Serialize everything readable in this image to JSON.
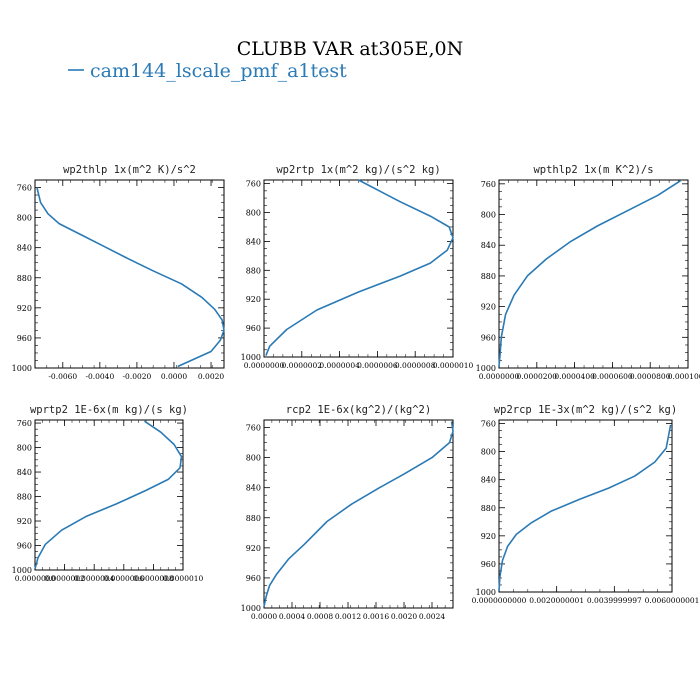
{
  "figure": {
    "title": "CLUBB VAR at305E,0N",
    "legend": "cam144_lscale_pmf_a1test",
    "series_color": "#2a7ab5"
  },
  "chart_data": [
    {
      "type": "line",
      "title": "wp2thlp   1x(m^2 K)/s^2",
      "xlim": [
        -0.0075,
        0.0027
      ],
      "ylim": [
        1000,
        750
      ],
      "y_ticks": [
        "760",
        "800",
        "840",
        "880",
        "920",
        "960",
        "1000"
      ],
      "x_ticks": [
        "-0.0060",
        "-0.0040",
        "-0.0020",
        "0.0000",
        "0.0020"
      ],
      "x_tick_values": [
        -0.006,
        -0.004,
        -0.002,
        0.0,
        0.002
      ],
      "series": [
        {
          "x": [
            -0.0074,
            -0.0072,
            -0.0068,
            -0.0062,
            -0.005,
            -0.0038,
            -0.0026,
            -0.0012,
            0.0004,
            0.0015,
            0.0022,
            0.0026,
            0.0027,
            0.0025,
            0.002,
            0.0002
          ],
          "y": [
            760,
            780,
            795,
            808,
            823,
            838,
            853,
            870,
            888,
            906,
            922,
            936,
            950,
            963,
            978,
            998
          ]
        }
      ]
    },
    {
      "type": "line",
      "title": "wp2rtp   1x(m^2 kg)/(s^2 kg)",
      "xlim": [
        0.0,
        1e-05
      ],
      "ylim": [
        1000,
        755
      ],
      "y_ticks": [
        "760",
        "800",
        "840",
        "880",
        "920",
        "960",
        "1000"
      ],
      "x_ticks": [
        "0.0000000",
        "0.0000002",
        "0.0000004",
        "0.0000006",
        "0.0000008",
        "0.0000010"
      ],
      "series": [
        {
          "x": [
            5e-06,
            7.2e-06,
            8.8e-06,
            9.8e-06,
            1e-05,
            9.7e-06,
            8.8e-06,
            7.2e-06,
            5e-06,
            2.8e-06,
            1.2e-06,
            3e-07,
            1e-07
          ],
          "y": [
            755,
            785,
            805,
            820,
            835,
            852,
            870,
            888,
            910,
            935,
            962,
            985,
            998
          ]
        }
      ]
    },
    {
      "type": "line",
      "title": "wpthlp2   1x(m K^2)/s",
      "xlim": [
        0.0,
        0.0001
      ],
      "ylim": [
        1000,
        755
      ],
      "y_ticks": [
        "760",
        "800",
        "840",
        "880",
        "920",
        "960",
        "1000"
      ],
      "x_ticks": [
        "0.0000000",
        "0.0000200",
        "0.0000400",
        "0.0000600",
        "0.0000800",
        "0.0001000"
      ],
      "series": [
        {
          "x": [
            0.0,
            5e-07,
            1.2e-06,
            3.5e-06,
            8e-06,
            1.5e-05,
            2.5e-05,
            3.8e-05,
            5.2e-05,
            6.8e-05,
            8.4e-05,
            9.6e-05
          ],
          "y": [
            998,
            985,
            960,
            930,
            905,
            880,
            858,
            835,
            815,
            795,
            775,
            756
          ]
        }
      ]
    },
    {
      "type": "line",
      "title": "wprtp2   1E-6x(m kg)/(s kg)",
      "xlim": [
        0.0,
        1e-06
      ],
      "ylim": [
        1000,
        755
      ],
      "y_ticks": [
        "760",
        "800",
        "840",
        "880",
        "920",
        "960",
        "1000"
      ],
      "x_ticks": [
        "0.0000000",
        "0.0000002",
        "0.0000004",
        "0.0000006",
        "0.0000008",
        "0.0000010"
      ],
      "series": [
        {
          "x": [
            7.4e-07,
            8.5e-07,
            9.4e-07,
            9.9e-07,
            9.8e-07,
            9e-07,
            7.5e-07,
            5.5e-07,
            3.5e-07,
            1.8e-07,
            7e-08,
            2e-08,
            0.0
          ],
          "y": [
            757,
            775,
            795,
            815,
            833,
            852,
            870,
            892,
            912,
            935,
            958,
            980,
            998
          ]
        }
      ]
    },
    {
      "type": "line",
      "title": "rcp2   1E-6x(kg^2)/(kg^2)",
      "xlim": [
        0.0,
        0.0027
      ],
      "ylim": [
        1000,
        750
      ],
      "y_ticks": [
        "760",
        "800",
        "840",
        "880",
        "920",
        "960",
        "1000"
      ],
      "x_ticks": [
        "0.0000",
        "0.0004",
        "0.0008",
        "0.0012",
        "0.0016",
        "0.0020",
        "0.0024"
      ],
      "x_tick_values": [
        0.0,
        0.0004,
        0.0008,
        0.0012,
        0.0016,
        0.002,
        0.0024
      ],
      "series": [
        {
          "x": [
            0.0,
            3e-05,
            8e-05,
            0.00018,
            0.00035,
            0.00058,
            0.0009,
            0.00125,
            0.00165,
            0.002,
            0.0024,
            0.00265,
            0.0027,
            0.00268
          ],
          "y": [
            998,
            985,
            970,
            955,
            935,
            915,
            885,
            862,
            840,
            822,
            800,
            780,
            765,
            752
          ]
        }
      ]
    },
    {
      "type": "line",
      "title": "wp2rcp   1E-3x(m^2 kg)/(s^2 kg)",
      "xlim": [
        0.0,
        0.0060000001
      ],
      "ylim": [
        1000,
        755
      ],
      "y_ticks": [
        "760",
        "800",
        "840",
        "880",
        "920",
        "960",
        "1000"
      ],
      "x_ticks": [
        "0.0000000000",
        "0.0020000001",
        "0.0039999997",
        "0.0060000001"
      ],
      "series": [
        {
          "x": [
            0.0,
            3e-05,
            0.00012,
            0.0003,
            0.0006,
            0.0011,
            0.0018,
            0.0028,
            0.0038,
            0.0047,
            0.0054,
            0.0058,
            0.00595
          ],
          "y": [
            998,
            978,
            955,
            935,
            918,
            902,
            885,
            868,
            852,
            835,
            815,
            795,
            762
          ]
        }
      ]
    }
  ]
}
